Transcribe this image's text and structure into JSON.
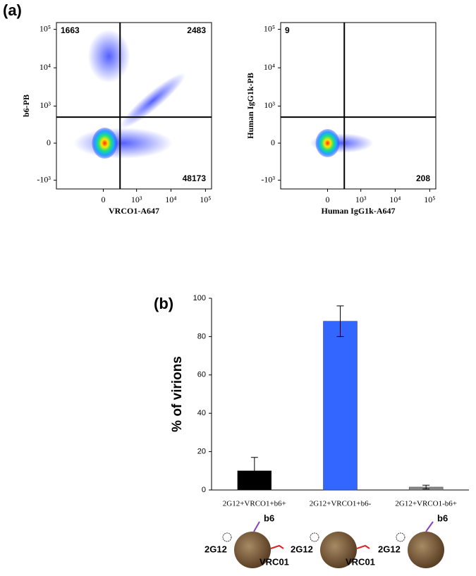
{
  "panel_labels": [
    "(a)",
    "(b)"
  ],
  "chart_data": [
    {
      "type": "flow",
      "xlabel": "VRCO1-A647",
      "ylabel": "b6-PB",
      "xlim": [
        -2500,
        150000
      ],
      "ylim": [
        -1700,
        150000
      ],
      "xticks": [
        0,
        {
          "value": 1000,
          "label": "10³"
        },
        {
          "value": 10000,
          "label": "10⁴"
        },
        {
          "value": 100000,
          "label": "10⁵"
        }
      ],
      "yticks": [
        {
          "value": -1000,
          "label": "-10³"
        },
        0,
        {
          "value": 1000,
          "label": "10³"
        },
        {
          "value": 10000,
          "label": "10⁴"
        },
        {
          "value": 100000,
          "label": "10⁵"
        }
      ],
      "gates": {
        "x": 300,
        "y": 500
      },
      "quadrant_counts": [
        {
          "corner": "upper-left",
          "count": 1663
        },
        {
          "corner": "upper-right",
          "count": 2483
        },
        {
          "corner": "lower-right",
          "count": 48173
        }
      ]
    },
    {
      "type": "flow",
      "xlabel": "Human IgG1k-A647",
      "ylabel": "Human IgG1k-PB",
      "xlim": [
        -2500,
        150000
      ],
      "ylim": [
        -1700,
        150000
      ],
      "xticks": [
        0,
        {
          "value": 1000,
          "label": "10³"
        },
        {
          "value": 10000,
          "label": "10⁴"
        },
        {
          "value": 100000,
          "label": "10⁵"
        }
      ],
      "yticks": [
        {
          "value": -1000,
          "label": "-10³"
        },
        0,
        {
          "value": 1000,
          "label": "10³"
        },
        {
          "value": 10000,
          "label": "10⁴"
        },
        {
          "value": 100000,
          "label": "10⁵"
        }
      ],
      "gates": {
        "x": 300,
        "y": 500
      },
      "quadrant_counts": [
        {
          "corner": "upper-left",
          "count": 9
        },
        {
          "corner": "lower-right",
          "count": 208
        }
      ]
    },
    {
      "type": "bar",
      "ylabel": "% of virions",
      "categories": [
        "2G12+VRCO1+b6+",
        "2G12+VRCO1+b6-",
        "2G12+VRCO1-b6+"
      ],
      "values": [
        10,
        88,
        1.5
      ],
      "errors": [
        7,
        8,
        1
      ],
      "colors": [
        "#000000",
        "#3366ff",
        "#888888"
      ],
      "ylim": [
        0,
        100
      ],
      "yticks": [
        0,
        20,
        40,
        60,
        80,
        100
      ]
    }
  ],
  "illustrations": [
    {
      "labels": [
        "b6",
        "2G12",
        "VRC01"
      ]
    },
    {
      "labels": [
        "2G12",
        "VRC01"
      ]
    },
    {
      "labels": [
        "b6",
        "2G12"
      ]
    }
  ]
}
